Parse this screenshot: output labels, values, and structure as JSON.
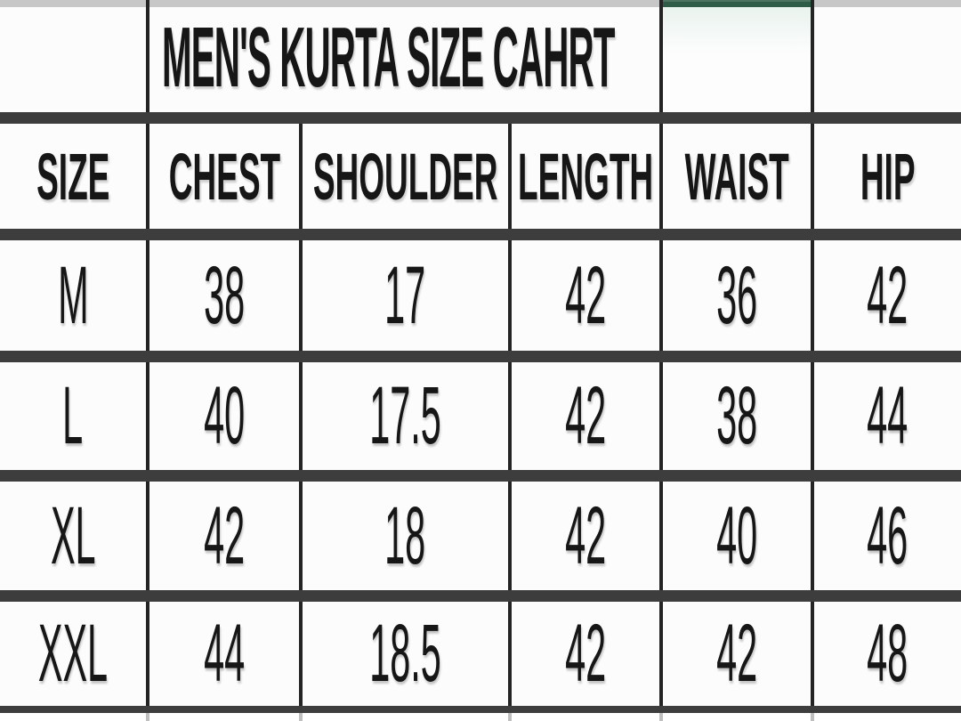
{
  "chart_data": {
    "type": "table",
    "title": "MEN'S KURTA SIZE CAHRT",
    "columns": [
      "SIZE",
      "CHEST",
      "SHOULDER",
      "LENGTH",
      "WAIST",
      "HIP"
    ],
    "rows": [
      [
        "M",
        "38",
        "17",
        "42",
        "36",
        "42"
      ],
      [
        "L",
        "40",
        "17.5",
        "42",
        "38",
        "44"
      ],
      [
        "XL",
        "42",
        "18",
        "42",
        "40",
        "46"
      ],
      [
        "XXL",
        "44",
        "18.5",
        "42",
        "42",
        "48"
      ]
    ],
    "layout_hints": {
      "title_spans_columns": "CHEST to LENGTH",
      "green_accent_bar_over_column": "WAIST",
      "grid": "thick dark horizontal separators, thin black vertical borders"
    }
  },
  "colors": {
    "accent_green": "#2e5c46",
    "grid_border": "#242424",
    "row_separator": "#3d3d3d",
    "top_strip_gray": "#c7c7c7",
    "text": "#161616",
    "cell_background": "#fcfcfc"
  }
}
